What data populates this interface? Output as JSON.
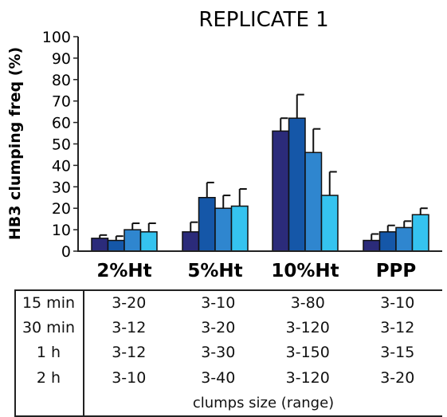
{
  "chart_data": {
    "type": "bar",
    "title": "REPLICATE 1",
    "xlabel": "",
    "ylabel": "HB3 clumping freq (%)",
    "ylim": [
      0,
      100
    ],
    "yticks": [
      "0",
      "10",
      "20",
      "30",
      "40",
      "50",
      "60",
      "70",
      "80",
      "90",
      "100"
    ],
    "categories": [
      "2%Ht",
      "5%Ht",
      "10%Ht",
      "PPP"
    ],
    "series": [
      {
        "color": "#2b2b7a",
        "values": [
          6,
          9,
          56,
          5
        ],
        "errors": [
          1.5,
          4.5,
          6,
          3
        ]
      },
      {
        "color": "#1557a8",
        "values": [
          5,
          25,
          62,
          9
        ],
        "errors": [
          2,
          7,
          11,
          3
        ]
      },
      {
        "color": "#2f86cf",
        "values": [
          10,
          20,
          46,
          11
        ],
        "errors": [
          3,
          6,
          11,
          3
        ]
      },
      {
        "color": "#35c3ef",
        "values": [
          9,
          21,
          26,
          17
        ],
        "errors": [
          4,
          8,
          11,
          3
        ]
      }
    ],
    "grid": false
  },
  "ranges_table": {
    "rows": [
      {
        "label": "15 min",
        "values": [
          "3-20",
          "3-10",
          "3-80",
          "3-10"
        ]
      },
      {
        "label": "30 min",
        "values": [
          "3-12",
          "3-20",
          "3-120",
          "3-12"
        ]
      },
      {
        "label": "1 h",
        "values": [
          "3-12",
          "3-30",
          "3-150",
          "3-15"
        ]
      },
      {
        "label": "2 h",
        "values": [
          "3-10",
          "3-40",
          "3-120",
          "3-20"
        ]
      }
    ],
    "footer": "clumps size (range)"
  }
}
